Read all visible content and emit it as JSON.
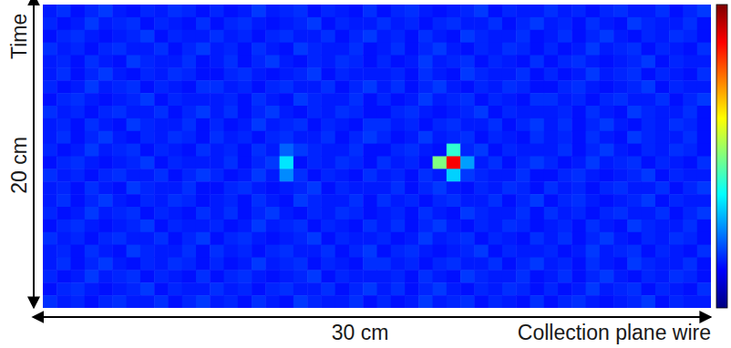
{
  "chart_data": {
    "type": "heatmap",
    "x_label": "Collection plane wire",
    "y_label": "Time",
    "x_extent_label": "30 cm",
    "y_extent_label": "20 cm",
    "xlim": [
      0,
      30
    ],
    "ylim": [
      0,
      20
    ],
    "tick_labels": false,
    "colorbar": {
      "range": [
        0,
        100
      ]
    },
    "z": [
      [
        15,
        17,
        14,
        16,
        18,
        15,
        14,
        16,
        15,
        17,
        16,
        14,
        16,
        14,
        15,
        18,
        15,
        16,
        17,
        14,
        16,
        15,
        14,
        17,
        14,
        16,
        17,
        15,
        14,
        15,
        16,
        18,
        14,
        16,
        15,
        15,
        17,
        15,
        16,
        14,
        16,
        17,
        15,
        15,
        17,
        14,
        16,
        18
      ],
      [
        16,
        14,
        15,
        18,
        15,
        16,
        17,
        14,
        16,
        15,
        14,
        17,
        14,
        16,
        17,
        15,
        14,
        15,
        16,
        18,
        14,
        16,
        15,
        15,
        17,
        15,
        16,
        14,
        16,
        17,
        15,
        15,
        17,
        14,
        16,
        18,
        15,
        16,
        14,
        17,
        15,
        14,
        18,
        16,
        15,
        15,
        17,
        14
      ],
      [
        14,
        16,
        17,
        15,
        14,
        15,
        16,
        18,
        14,
        16,
        15,
        15,
        17,
        15,
        16,
        14,
        16,
        17,
        15,
        15,
        17,
        14,
        16,
        18,
        15,
        16,
        14,
        17,
        15,
        14,
        18,
        16,
        15,
        15,
        17,
        14,
        15,
        17,
        14,
        16,
        18,
        15,
        14,
        16,
        15,
        17,
        16,
        14
      ],
      [
        17,
        15,
        16,
        14,
        16,
        17,
        15,
        15,
        17,
        14,
        16,
        18,
        15,
        16,
        14,
        17,
        15,
        14,
        18,
        16,
        15,
        15,
        17,
        14,
        15,
        17,
        14,
        16,
        18,
        15,
        14,
        16,
        15,
        17,
        16,
        14,
        16,
        14,
        15,
        18,
        15,
        16,
        17,
        14,
        16,
        15,
        14,
        17
      ],
      [
        15,
        16,
        14,
        17,
        15,
        14,
        18,
        16,
        15,
        15,
        17,
        14,
        15,
        17,
        14,
        16,
        18,
        15,
        14,
        16,
        15,
        17,
        16,
        14,
        16,
        14,
        15,
        18,
        15,
        16,
        17,
        14,
        16,
        15,
        14,
        17,
        14,
        16,
        17,
        15,
        14,
        15,
        16,
        18,
        14,
        16,
        15,
        15
      ],
      [
        15,
        17,
        14,
        16,
        18,
        15,
        14,
        16,
        15,
        17,
        16,
        14,
        14,
        16,
        17,
        15,
        14,
        15,
        16,
        18,
        14,
        16,
        15,
        15,
        15,
        16,
        14,
        17,
        15,
        14,
        18,
        16,
        15,
        15,
        17,
        14,
        16,
        14,
        15,
        18,
        15,
        16,
        17,
        14,
        16,
        15,
        14,
        17
      ],
      [
        16,
        14,
        15,
        18,
        15,
        16,
        17,
        14,
        16,
        15,
        14,
        17,
        17,
        15,
        16,
        14,
        16,
        17,
        15,
        15,
        17,
        14,
        16,
        18,
        15,
        17,
        14,
        16,
        18,
        15,
        14,
        16,
        15,
        17,
        16,
        14,
        14,
        16,
        17,
        15,
        14,
        15,
        16,
        18,
        14,
        16,
        15,
        15
      ],
      [
        14,
        16,
        17,
        15,
        14,
        15,
        16,
        18,
        14,
        16,
        15,
        15,
        15,
        16,
        14,
        17,
        15,
        14,
        18,
        16,
        15,
        15,
        17,
        14,
        16,
        14,
        15,
        18,
        15,
        16,
        17,
        14,
        16,
        15,
        14,
        17,
        17,
        15,
        16,
        14,
        16,
        17,
        15,
        15,
        17,
        14,
        16,
        18
      ],
      [
        17,
        15,
        16,
        14,
        16,
        17,
        15,
        15,
        17,
        14,
        16,
        18,
        15,
        17,
        14,
        16,
        18,
        15,
        14,
        16,
        15,
        17,
        16,
        14,
        14,
        16,
        17,
        15,
        14,
        15,
        16,
        18,
        14,
        16,
        15,
        15,
        15,
        16,
        14,
        17,
        15,
        14,
        18,
        16,
        15,
        15,
        17,
        14
      ],
      [
        15,
        16,
        14,
        17,
        15,
        14,
        18,
        16,
        15,
        15,
        17,
        14,
        16,
        14,
        15,
        18,
        15,
        16,
        17,
        14,
        16,
        15,
        14,
        17,
        17,
        15,
        16,
        14,
        16,
        17,
        15,
        15,
        17,
        14,
        16,
        18,
        15,
        17,
        14,
        16,
        18,
        15,
        14,
        16,
        15,
        17,
        16,
        14
      ],
      [
        15,
        17,
        14,
        16,
        18,
        15,
        14,
        16,
        15,
        17,
        16,
        14,
        17,
        15,
        16,
        14,
        16,
        17,
        15,
        15,
        17,
        14,
        16,
        18,
        16,
        14,
        15,
        18,
        15,
        16,
        17,
        14,
        16,
        15,
        14,
        17,
        15,
        16,
        14,
        17,
        15,
        14,
        18,
        16,
        15,
        15,
        17,
        14
      ],
      [
        16,
        14,
        15,
        18,
        15,
        16,
        17,
        14,
        16,
        15,
        14,
        17,
        15,
        16,
        14,
        17,
        15,
        22,
        18,
        16,
        15,
        15,
        17,
        14,
        14,
        16,
        17,
        15,
        14,
        42,
        16,
        18,
        14,
        16,
        15,
        15,
        15,
        17,
        14,
        16,
        18,
        15,
        14,
        16,
        15,
        17,
        16,
        14
      ],
      [
        14,
        16,
        17,
        15,
        14,
        15,
        16,
        18,
        14,
        16,
        15,
        15,
        15,
        17,
        14,
        16,
        18,
        35,
        14,
        16,
        15,
        17,
        16,
        14,
        17,
        15,
        16,
        14,
        50,
        88,
        28,
        15,
        17,
        14,
        16,
        18,
        16,
        14,
        15,
        18,
        15,
        16,
        17,
        14,
        16,
        15,
        14,
        17
      ],
      [
        17,
        15,
        16,
        14,
        16,
        17,
        15,
        15,
        17,
        14,
        16,
        18,
        16,
        14,
        15,
        18,
        15,
        26,
        17,
        14,
        16,
        15,
        14,
        17,
        15,
        16,
        14,
        17,
        15,
        33,
        18,
        16,
        15,
        15,
        17,
        14,
        14,
        16,
        17,
        15,
        14,
        15,
        16,
        18,
        14,
        16,
        15,
        15
      ],
      [
        15,
        16,
        14,
        17,
        15,
        14,
        18,
        16,
        15,
        15,
        17,
        14,
        14,
        16,
        17,
        15,
        14,
        15,
        16,
        18,
        14,
        16,
        15,
        15,
        15,
        17,
        14,
        16,
        18,
        15,
        14,
        16,
        15,
        17,
        16,
        14,
        17,
        15,
        16,
        14,
        16,
        17,
        15,
        15,
        17,
        14,
        16,
        18
      ],
      [
        15,
        17,
        14,
        16,
        18,
        15,
        14,
        16,
        15,
        17,
        16,
        14,
        15,
        16,
        14,
        17,
        15,
        14,
        18,
        16,
        15,
        15,
        17,
        14,
        17,
        15,
        16,
        14,
        16,
        17,
        15,
        15,
        17,
        14,
        16,
        18,
        14,
        16,
        17,
        15,
        14,
        15,
        16,
        18,
        14,
        16,
        15,
        15
      ],
      [
        16,
        14,
        15,
        18,
        15,
        16,
        17,
        14,
        16,
        15,
        14,
        17,
        15,
        17,
        14,
        16,
        18,
        15,
        14,
        16,
        15,
        17,
        16,
        14,
        15,
        16,
        14,
        17,
        15,
        14,
        18,
        16,
        15,
        15,
        17,
        14,
        17,
        15,
        16,
        14,
        16,
        17,
        15,
        15,
        17,
        14,
        16,
        18
      ],
      [
        14,
        16,
        17,
        15,
        14,
        15,
        16,
        18,
        14,
        16,
        15,
        15,
        16,
        14,
        15,
        18,
        15,
        16,
        17,
        14,
        16,
        15,
        14,
        17,
        15,
        17,
        14,
        16,
        18,
        15,
        14,
        16,
        15,
        17,
        16,
        14,
        15,
        16,
        14,
        17,
        15,
        14,
        18,
        16,
        15,
        15,
        17,
        14
      ],
      [
        17,
        15,
        16,
        14,
        16,
        17,
        15,
        15,
        17,
        14,
        16,
        18,
        14,
        16,
        17,
        15,
        14,
        15,
        16,
        18,
        14,
        16,
        15,
        15,
        16,
        14,
        15,
        18,
        15,
        16,
        17,
        14,
        16,
        15,
        14,
        17,
        15,
        17,
        14,
        16,
        18,
        15,
        14,
        16,
        15,
        17,
        16,
        14
      ],
      [
        15,
        16,
        14,
        17,
        15,
        14,
        18,
        16,
        15,
        15,
        17,
        14,
        17,
        15,
        16,
        14,
        16,
        17,
        15,
        15,
        17,
        14,
        16,
        18,
        14,
        16,
        17,
        15,
        14,
        15,
        16,
        18,
        14,
        16,
        15,
        15,
        16,
        14,
        15,
        18,
        15,
        16,
        17,
        14,
        16,
        15,
        14,
        17
      ],
      [
        15,
        17,
        14,
        16,
        18,
        15,
        14,
        16,
        15,
        17,
        16,
        14,
        16,
        14,
        15,
        18,
        15,
        16,
        17,
        14,
        16,
        15,
        14,
        17,
        17,
        15,
        16,
        14,
        16,
        17,
        15,
        15,
        17,
        14,
        16,
        18,
        15,
        16,
        14,
        17,
        15,
        14,
        18,
        16,
        15,
        15,
        17,
        14
      ],
      [
        16,
        14,
        15,
        18,
        15,
        16,
        17,
        14,
        16,
        15,
        14,
        17,
        14,
        16,
        17,
        15,
        14,
        15,
        16,
        18,
        14,
        16,
        15,
        15,
        15,
        16,
        14,
        17,
        15,
        14,
        18,
        16,
        15,
        15,
        17,
        14,
        15,
        17,
        14,
        16,
        18,
        15,
        14,
        16,
        15,
        17,
        16,
        14
      ],
      [
        14,
        16,
        17,
        15,
        14,
        15,
        16,
        18,
        14,
        16,
        15,
        15,
        17,
        15,
        16,
        14,
        16,
        17,
        15,
        15,
        17,
        14,
        16,
        18,
        15,
        17,
        14,
        16,
        18,
        15,
        14,
        16,
        15,
        17,
        16,
        14,
        16,
        14,
        15,
        18,
        15,
        16,
        17,
        14,
        16,
        15,
        14,
        17
      ],
      [
        17,
        15,
        16,
        14,
        16,
        17,
        15,
        15,
        17,
        14,
        16,
        18,
        15,
        16,
        14,
        17,
        15,
        14,
        18,
        16,
        15,
        15,
        17,
        14,
        16,
        14,
        15,
        18,
        15,
        16,
        17,
        14,
        16,
        15,
        14,
        17,
        14,
        16,
        17,
        15,
        14,
        15,
        16,
        18,
        14,
        16,
        15,
        15
      ]
    ]
  }
}
